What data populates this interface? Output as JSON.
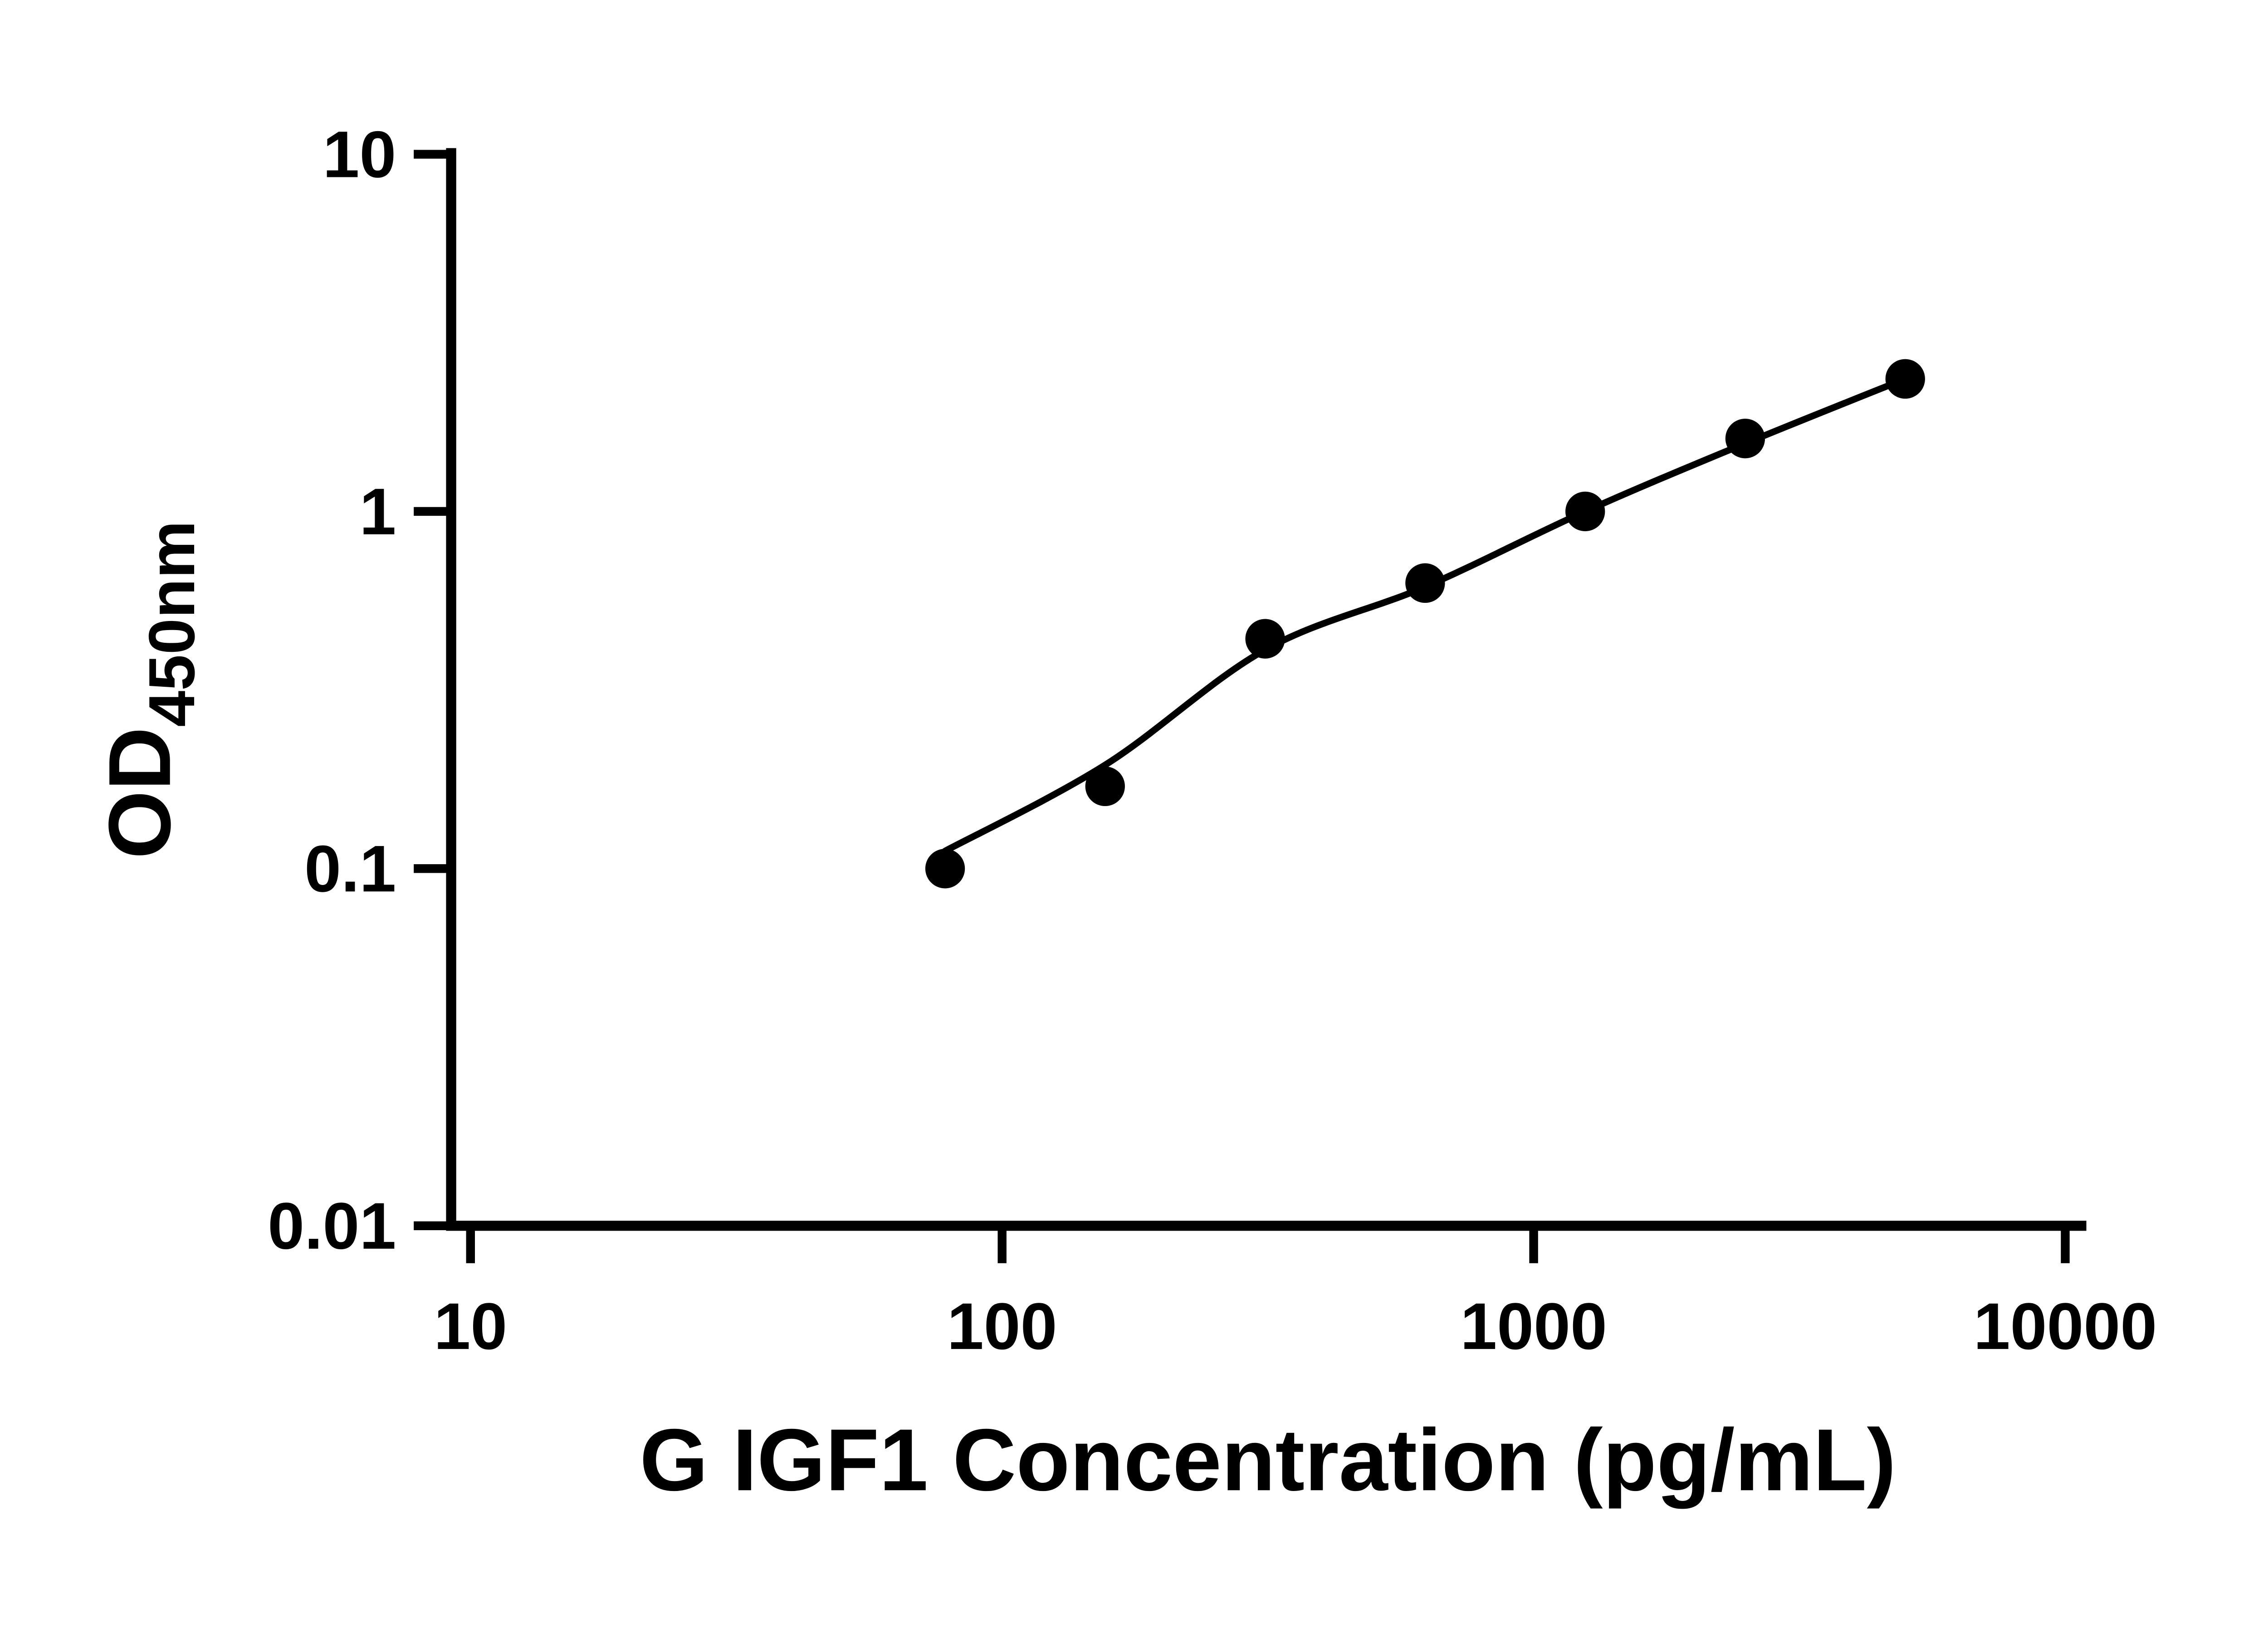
{
  "figure": {
    "colors": {
      "background": "#ffffff",
      "axis": "#000000",
      "marker": "#000000",
      "curve": "#000000"
    }
  },
  "chart_data": {
    "type": "scatter",
    "title": "",
    "xlabel": "G IGF1 Concentration (pg/mL)",
    "ylabel_main": "OD",
    "ylabel_sub": "450nm",
    "x_scale": "log",
    "y_scale": "log",
    "xlim": [
      10,
      10000
    ],
    "ylim": [
      0.01,
      10
    ],
    "x_ticks": [
      10,
      100,
      1000,
      10000
    ],
    "x_tick_labels": [
      "10",
      "100",
      "1000",
      "10000"
    ],
    "y_ticks": [
      0.01,
      0.1,
      1,
      10
    ],
    "y_tick_labels": [
      "0.01",
      "0.1",
      "1",
      "10"
    ],
    "grid": false,
    "legend": false,
    "series": [
      {
        "name": "standard-curve-points",
        "marker": "circle",
        "points": [
          {
            "x": 78.125,
            "y": 0.1
          },
          {
            "x": 156.25,
            "y": 0.17
          },
          {
            "x": 312.5,
            "y": 0.44
          },
          {
            "x": 625,
            "y": 0.63
          },
          {
            "x": 1250,
            "y": 1.0
          },
          {
            "x": 2500,
            "y": 1.6
          },
          {
            "x": 5000,
            "y": 2.35
          }
        ]
      }
    ],
    "fit_curve": [
      {
        "x": 78.125,
        "y": 0.112
      },
      {
        "x": 156.25,
        "y": 0.195
      },
      {
        "x": 312.5,
        "y": 0.41
      },
      {
        "x": 625,
        "y": 0.615
      },
      {
        "x": 1250,
        "y": 1.0
      },
      {
        "x": 2500,
        "y": 1.55
      },
      {
        "x": 5000,
        "y": 2.35
      }
    ]
  }
}
